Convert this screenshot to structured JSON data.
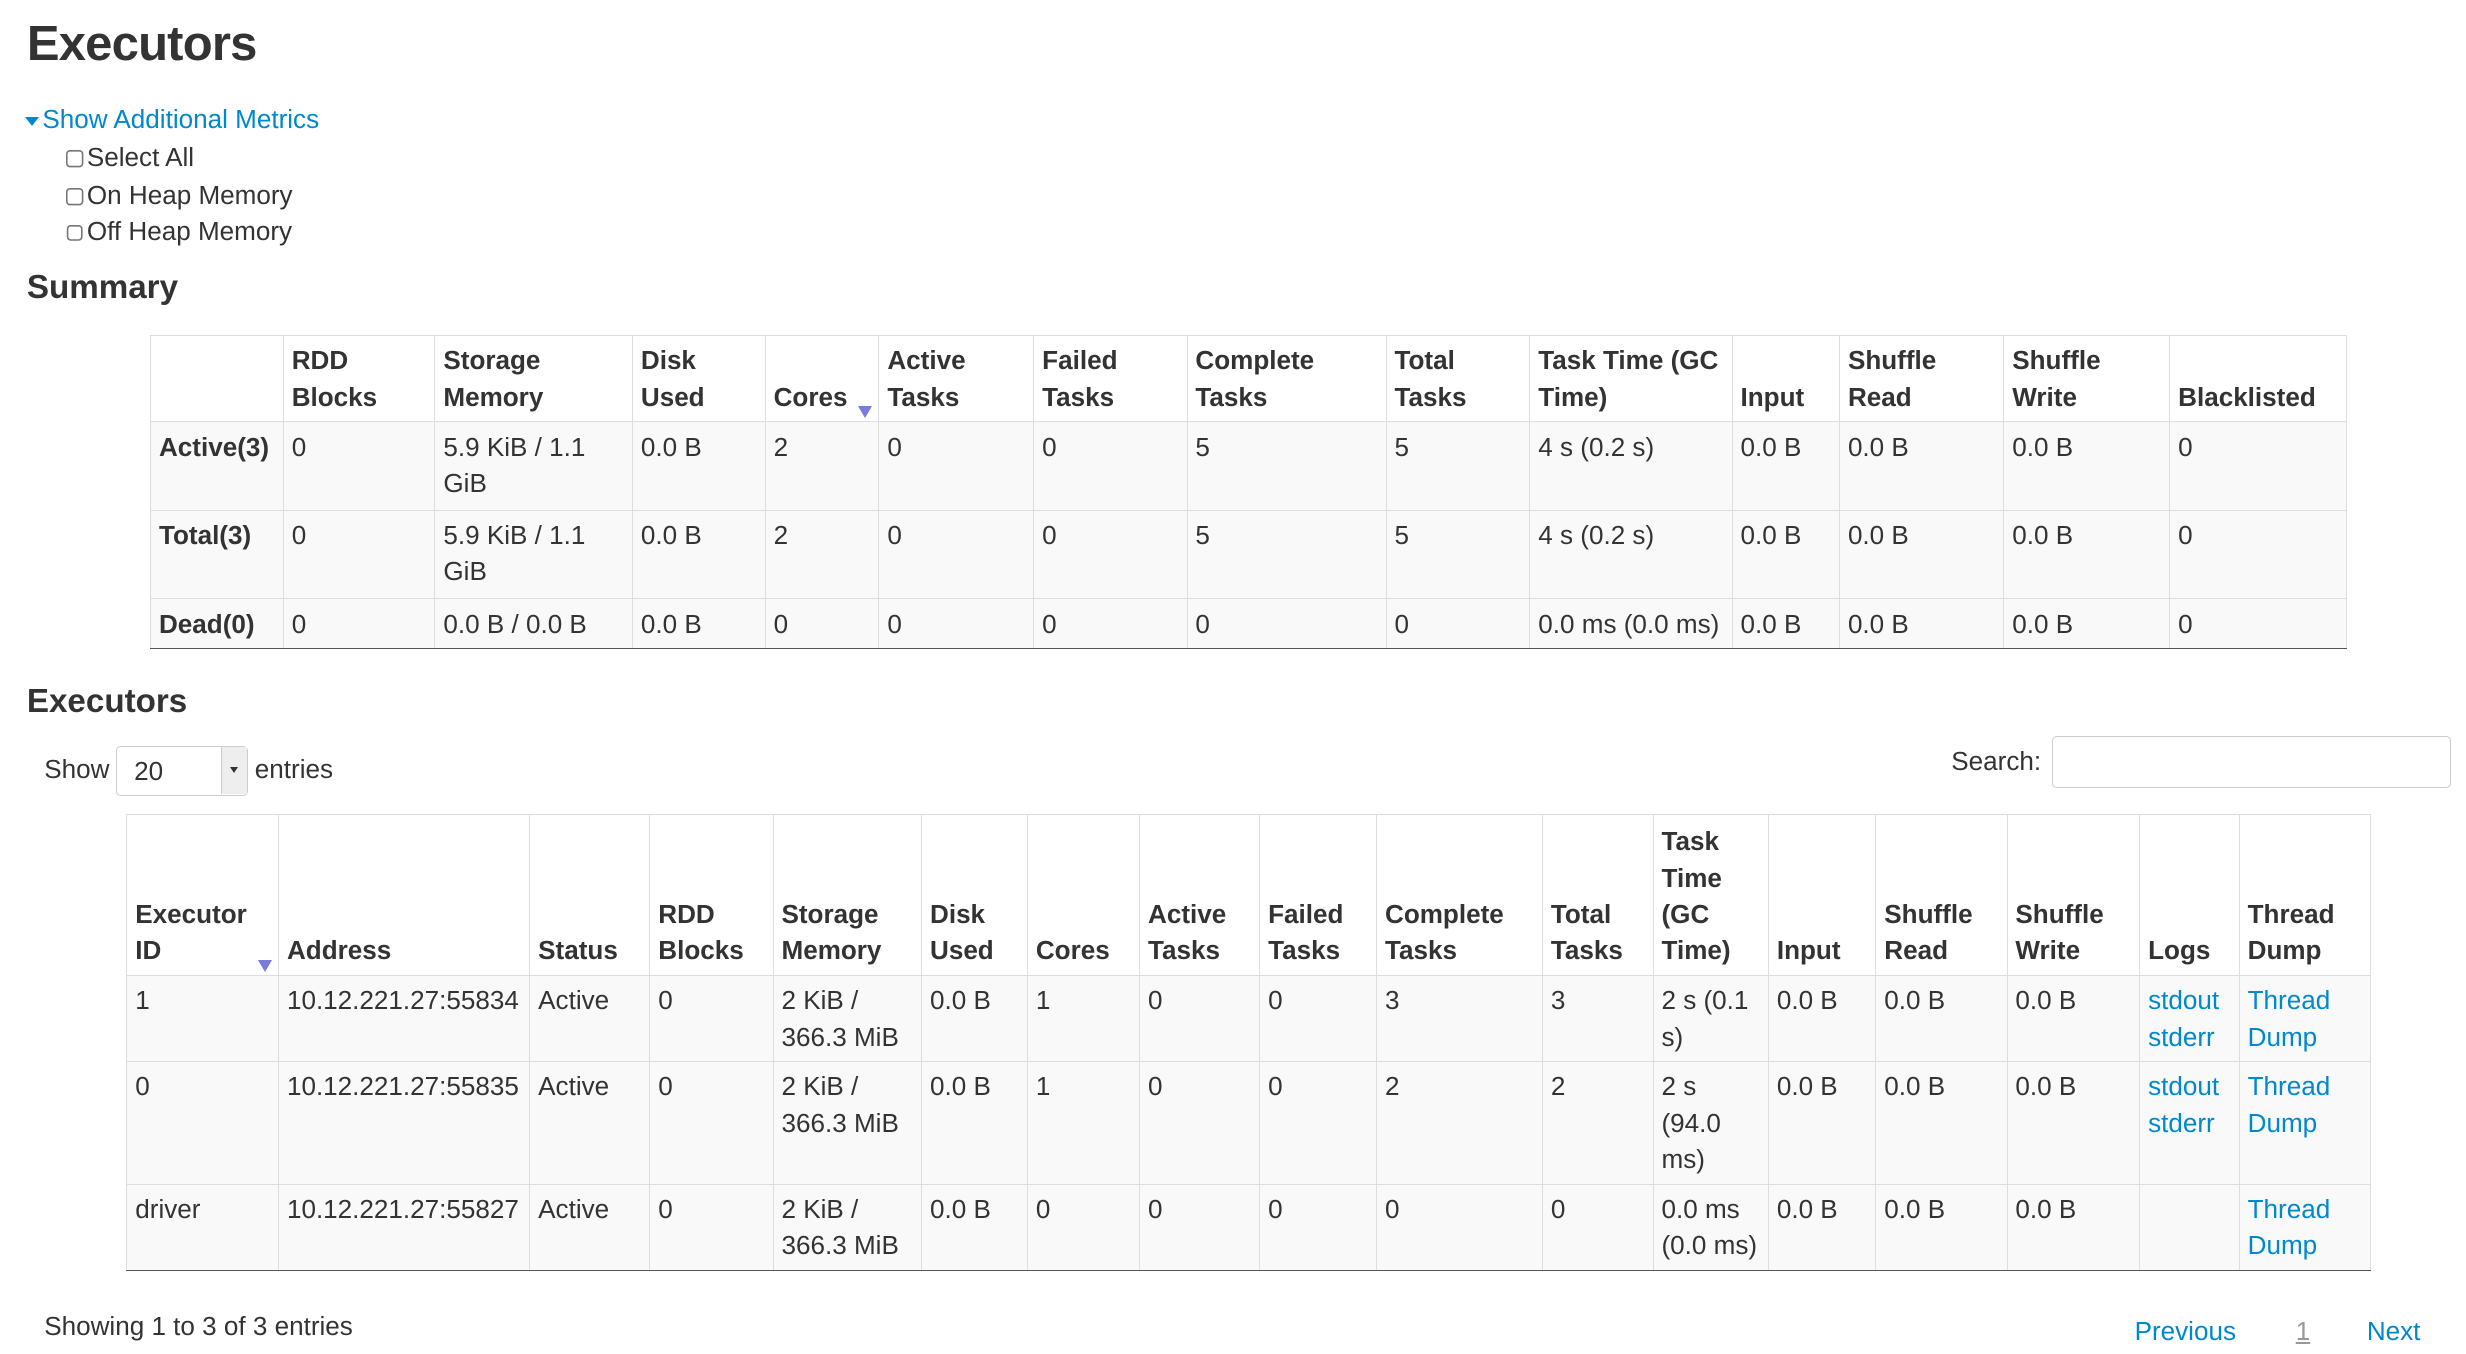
{
  "title": "Executors",
  "metrics": {
    "toggle_label": "Show Additional Metrics",
    "options": [
      "Select All",
      "On Heap Memory",
      "Off Heap Memory"
    ]
  },
  "summary": {
    "heading": "Summary",
    "columns": [
      "",
      "RDD Blocks",
      "Storage Memory",
      "Disk Used",
      "Cores",
      "Active Tasks",
      "Failed Tasks",
      "Complete Tasks",
      "Total Tasks",
      "Task Time (GC Time)",
      "Input",
      "Shuffle Read",
      "Shuffle Write",
      "Blacklisted"
    ],
    "sorted_column": "Cores",
    "rows": [
      [
        "Active(3)",
        "0",
        "5.9 KiB / 1.1 GiB",
        "0.0 B",
        "2",
        "0",
        "0",
        "5",
        "5",
        "4 s (0.2 s)",
        "0.0 B",
        "0.0 B",
        "0.0 B",
        "0"
      ],
      [
        "Total(3)",
        "0",
        "5.9 KiB / 1.1 GiB",
        "0.0 B",
        "2",
        "0",
        "0",
        "5",
        "5",
        "4 s (0.2 s)",
        "0.0 B",
        "0.0 B",
        "0.0 B",
        "0"
      ],
      [
        "Dead(0)",
        "0",
        "0.0 B / 0.0 B",
        "0.0 B",
        "0",
        "0",
        "0",
        "0",
        "0",
        "0.0 ms (0.0 ms)",
        "0.0 B",
        "0.0 B",
        "0.0 B",
        "0"
      ]
    ]
  },
  "executors": {
    "heading": "Executors",
    "show_label": "Show",
    "page_size": "20",
    "entries_label": "entries",
    "search_label": "Search:",
    "search_value": "",
    "columns": [
      "Executor ID",
      "Address",
      "Status",
      "RDD Blocks",
      "Storage Memory",
      "Disk Used",
      "Cores",
      "Active Tasks",
      "Failed Tasks",
      "Complete Tasks",
      "Total Tasks",
      "Task Time (GC Time)",
      "Input",
      "Shuffle Read",
      "Shuffle Write",
      "Logs",
      "Thread Dump"
    ],
    "sorted_column": "Executor ID",
    "rows": [
      {
        "cells": [
          "1",
          "10.12.221.27:55834",
          "Active",
          "0",
          "2 KiB / 366.3 MiB",
          "0.0 B",
          "1",
          "0",
          "0",
          "3",
          "3",
          "2 s (0.1 s)",
          "0.0 B",
          "0.0 B",
          "0.0 B"
        ],
        "logs": [
          "stdout",
          "stderr"
        ],
        "thread_dump": "Thread Dump"
      },
      {
        "cells": [
          "0",
          "10.12.221.27:55835",
          "Active",
          "0",
          "2 KiB / 366.3 MiB",
          "0.0 B",
          "1",
          "0",
          "0",
          "2",
          "2",
          "2 s (94.0 ms)",
          "0.0 B",
          "0.0 B",
          "0.0 B"
        ],
        "logs": [
          "stdout",
          "stderr"
        ],
        "thread_dump": "Thread Dump"
      },
      {
        "cells": [
          "driver",
          "10.12.221.27:55827",
          "Active",
          "0",
          "2 KiB / 366.3 MiB",
          "0.0 B",
          "0",
          "0",
          "0",
          "0",
          "0",
          "0.0 ms (0.0 ms)",
          "0.0 B",
          "0.0 B",
          "0.0 B"
        ],
        "logs": [],
        "thread_dump": "Thread Dump"
      }
    ],
    "info": "Showing 1 to 3 of 3 entries",
    "pagination": {
      "previous": "Previous",
      "current": "1",
      "next": "Next"
    }
  },
  "colors": {
    "link": "#0088cc",
    "sort_indicator": "#7a7adf"
  }
}
